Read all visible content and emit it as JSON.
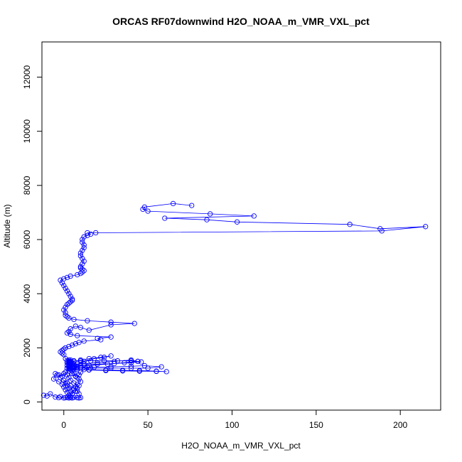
{
  "chart_data": {
    "type": "line",
    "title": "ORCAS RF07downwind H2O_NOAA_m_VMR_VXL_pct",
    "xlabel": "H2O_NOAA_m_VMR_VXL_pct",
    "ylabel": "Altitude (m)",
    "xlim": [
      -13,
      224
    ],
    "ylim": [
      -300,
      13300
    ],
    "x_ticks": [
      0,
      50,
      100,
      150,
      200
    ],
    "y_ticks": [
      0,
      2000,
      4000,
      6000,
      8000,
      10000,
      12000
    ],
    "grid": false,
    "markers": "open-circle",
    "line_color": "#0000ff",
    "series": [
      {
        "x": [
          -12,
          -10,
          -8,
          -5,
          -3,
          -2,
          0,
          1,
          2,
          3,
          4,
          5,
          6,
          8,
          9,
          10,
          9,
          8,
          6,
          4,
          2,
          0,
          -2,
          -4,
          -5,
          -6,
          -3,
          -1,
          0,
          1,
          2,
          3,
          4,
          5,
          7,
          8,
          9,
          6,
          4,
          3,
          2,
          1,
          0,
          -1,
          -3,
          -2,
          0,
          1,
          2,
          3,
          4,
          5,
          6,
          7,
          8,
          10,
          9,
          7,
          5,
          3,
          2,
          3,
          4,
          5,
          6,
          7,
          8,
          9,
          10,
          12,
          14,
          10,
          8,
          6,
          4,
          3,
          2,
          3,
          4,
          3,
          2,
          3,
          4,
          3,
          2,
          3,
          4,
          3,
          2,
          3,
          4,
          5,
          4,
          3,
          2,
          3,
          6,
          10,
          16,
          24,
          32,
          40,
          44,
          46,
          40,
          30,
          20,
          12,
          6,
          3,
          5,
          8,
          15,
          25,
          35,
          45,
          55,
          61,
          55,
          45,
          35,
          25,
          15,
          8,
          4,
          3,
          5,
          10,
          18,
          28,
          40,
          48,
          58,
          50,
          40,
          28,
          16,
          8,
          4,
          3,
          6,
          15,
          26,
          36,
          44,
          40,
          30,
          20,
          12,
          6,
          3,
          5,
          8,
          12,
          18,
          24,
          28,
          22,
          15,
          10,
          6,
          4,
          3,
          1,
          0,
          -1,
          -2,
          -1,
          0,
          1,
          3,
          5,
          7,
          9,
          12,
          22,
          20,
          28,
          8,
          4,
          2,
          3,
          4,
          7,
          10,
          15,
          28,
          42,
          28,
          14,
          6,
          3,
          2,
          1,
          1,
          0,
          1,
          2,
          3,
          4,
          5,
          5,
          4,
          3,
          2,
          1,
          0,
          -1,
          -2,
          0,
          2,
          4,
          8,
          10,
          11,
          12,
          11,
          10,
          10,
          11,
          12,
          11,
          10,
          10,
          11,
          12,
          12,
          11,
          11,
          12,
          14,
          16,
          14,
          19,
          189,
          215,
          188,
          170,
          103,
          85,
          60,
          113,
          87,
          50,
          47,
          48,
          65,
          76
        ],
        "y": [
          250,
          220,
          300,
          180,
          160,
          200,
          150,
          160,
          170,
          150,
          160,
          150,
          170,
          160,
          150,
          160,
          300,
          400,
          500,
          600,
          700,
          800,
          900,
          1000,
          1050,
          850,
          750,
          650,
          550,
          450,
          350,
          250,
          200,
          300,
          400,
          500,
          600,
          700,
          800,
          900,
          1000,
          1100,
          1050,
          950,
          1000,
          900,
          800,
          700,
          600,
          500,
          400,
          300,
          450,
          550,
          650,
          750,
          850,
          950,
          1050,
          1150,
          1250,
          1350,
          1250,
          1150,
          1050,
          950,
          900,
          1000,
          1100,
          1200,
          1300,
          1350,
          1300,
          1250,
          1200,
          1150,
          1250,
          1300,
          1350,
          1400,
          1450,
          1500,
          1550,
          1450,
          1350,
          1300,
          1400,
          1480,
          1520,
          1500,
          1450,
          1400,
          1500,
          1550,
          1450,
          1500,
          1520,
          1520,
          1520,
          1520,
          1520,
          1520,
          1500,
          1480,
          1450,
          1420,
          1400,
          1380,
          1350,
          1300,
          1250,
          1200,
          1180,
          1160,
          1150,
          1140,
          1130,
          1120,
          1140,
          1160,
          1170,
          1180,
          1190,
          1200,
          1200,
          1220,
          1240,
          1260,
          1280,
          1300,
          1320,
          1340,
          1300,
          1250,
          1250,
          1250,
          1250,
          1250,
          1250,
          1250,
          1300,
          1350,
          1400,
          1450,
          1500,
          1550,
          1500,
          1450,
          1420,
          1400,
          1380,
          1300,
          1400,
          1500,
          1600,
          1650,
          1700,
          1650,
          1600,
          1550,
          1500,
          1450,
          1500,
          1600,
          1750,
          1800,
          1850,
          1900,
          1950,
          2000,
          2050,
          2100,
          2150,
          2200,
          2250,
          2300,
          2350,
          2400,
          2450,
          2500,
          2550,
          2600,
          2700,
          2800,
          2750,
          2650,
          2850,
          2900,
          2950,
          3000,
          3050,
          3100,
          3150,
          3200,
          3300,
          3400,
          3500,
          3600,
          3650,
          3700,
          3750,
          3800,
          3900,
          4000,
          4100,
          4200,
          4300,
          4400,
          4500,
          4550,
          4600,
          4650,
          4700,
          4750,
          4800,
          4850,
          4900,
          4950,
          5000,
          5100,
          5200,
          5300,
          5400,
          5500,
          5600,
          5700,
          5800,
          5900,
          6000,
          6100,
          6150,
          6200,
          6250,
          6250,
          6320,
          6480,
          6400,
          6560,
          6650,
          6730,
          6790,
          6870,
          6950,
          7050,
          7120,
          7200,
          7330,
          7260
        ]
      }
    ]
  }
}
